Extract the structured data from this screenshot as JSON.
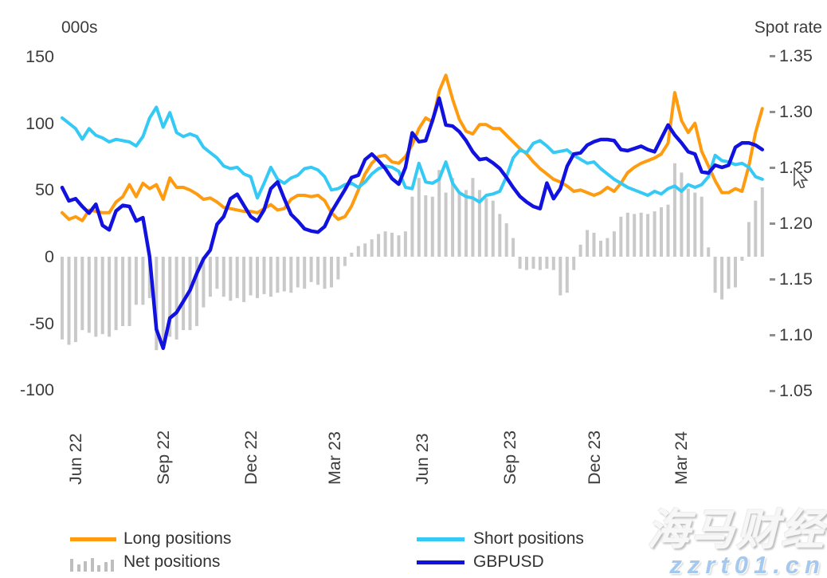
{
  "chart_data": {
    "type": "combo",
    "description": "GBP futures positioning (weekly) vs GBPUSD spot rate",
    "left_axis": {
      "label": "000s",
      "range": [
        -100,
        150
      ],
      "ticks": [
        {
          "label": "150",
          "value": 150
        },
        {
          "label": "100",
          "value": 100
        },
        {
          "label": "50",
          "value": 50
        },
        {
          "label": "0",
          "value": 0
        },
        {
          "label": "-50",
          "value": -50
        },
        {
          "label": "-100",
          "value": -100
        }
      ]
    },
    "right_axis": {
      "label": "Spot rate",
      "range": [
        1.05,
        1.35
      ],
      "ticks": [
        {
          "label": "1.35",
          "value": 1.35
        },
        {
          "label": "1.30",
          "value": 1.3
        },
        {
          "label": "1.25",
          "value": 1.25
        },
        {
          "label": "1.20",
          "value": 1.2
        },
        {
          "label": "1.15",
          "value": 1.15
        },
        {
          "label": "1.10",
          "value": 1.1
        },
        {
          "label": "1.05",
          "value": 1.05
        }
      ]
    },
    "x_axis": {
      "unit": "weeks",
      "tick_labels": [
        {
          "label": "Jun 22",
          "index": 2
        },
        {
          "label": "Sep 22",
          "index": 15
        },
        {
          "label": "Dec 22",
          "index": 28
        },
        {
          "label": "Mar 23",
          "index": 40.5
        },
        {
          "label": "Jun 23",
          "index": 53.5
        },
        {
          "label": "Sep 23",
          "index": 66.5
        },
        {
          "label": "Dec 23",
          "index": 79
        },
        {
          "label": "Mar 24",
          "index": 92
        }
      ]
    },
    "grid": false,
    "legend_position": "bottom",
    "series": [
      {
        "name": "Long positions",
        "type": "line",
        "axis": "left",
        "color": "#FF9B0F",
        "values": [
          33,
          28,
          30,
          27,
          35,
          34,
          33,
          33,
          41,
          45,
          54,
          45,
          55,
          51,
          54,
          43,
          59,
          52,
          52,
          50,
          47,
          43,
          44,
          41,
          37,
          36,
          35,
          34,
          34,
          33,
          36,
          39,
          35,
          36,
          43,
          46,
          46,
          45,
          46,
          42,
          33,
          28,
          30,
          38,
          50,
          62,
          70,
          75,
          76,
          71,
          70,
          75,
          84,
          96,
          104,
          101,
          124,
          136,
          118,
          103,
          94,
          92,
          99,
          99,
          96,
          96,
          91,
          86,
          81,
          77,
          71,
          66,
          62,
          58,
          56,
          53,
          49,
          50,
          48,
          46,
          48,
          52,
          49,
          55,
          63,
          67,
          70,
          72,
          74,
          77,
          85,
          123,
          102,
          93,
          100,
          79,
          68,
          57,
          48,
          48,
          51,
          49,
          68,
          93,
          111
        ]
      },
      {
        "name": "Short positions",
        "type": "line",
        "axis": "left",
        "color": "#35C9F5",
        "values": [
          104,
          100,
          96,
          88,
          96,
          91,
          89,
          86,
          88,
          87,
          86,
          83,
          90,
          104,
          112,
          97,
          108,
          93,
          90,
          92,
          90,
          82,
          78,
          74,
          68,
          66,
          67,
          62,
          60,
          44,
          55,
          67,
          58,
          55,
          59,
          61,
          66,
          67,
          65,
          60,
          50,
          51,
          54,
          55,
          52,
          56,
          62,
          66,
          68,
          67,
          64,
          52,
          51,
          70,
          56,
          55,
          58,
          71,
          55,
          48,
          45,
          44,
          41,
          46,
          47,
          49,
          60,
          74,
          80,
          78,
          85,
          87,
          83,
          78,
          79,
          80,
          76,
          73,
          70,
          71,
          66,
          62,
          58,
          55,
          52,
          50,
          48,
          46,
          49,
          47,
          51,
          53,
          49,
          54,
          52,
          54,
          60,
          76,
          72,
          71,
          69,
          70,
          67,
          60,
          58
        ]
      },
      {
        "name": "Net positions",
        "type": "bar",
        "axis": "left",
        "color": "#c9c9c9",
        "values": [
          -62,
          -66,
          -64,
          -55,
          -57,
          -60,
          -58,
          -60,
          -55,
          -52,
          -52,
          -36,
          -36,
          -31,
          -70,
          -66,
          -60,
          -62,
          -55,
          -55,
          -52,
          -38,
          -30,
          -24,
          -30,
          -33,
          -31,
          -34,
          -29,
          -31,
          -28,
          -30,
          -27,
          -26,
          -27,
          -23,
          -24,
          -19,
          -21,
          -24,
          -23,
          -17,
          -7,
          3,
          8,
          10,
          13,
          17,
          19,
          18,
          16,
          19,
          45,
          59,
          46,
          45,
          65,
          48,
          59,
          48,
          50,
          59,
          50,
          44,
          42,
          32,
          25,
          14,
          -9,
          -10,
          -9,
          -10,
          -9,
          -10,
          -29,
          -27,
          -10,
          9,
          20,
          18,
          12,
          14,
          19,
          30,
          33,
          32,
          33,
          32,
          34,
          37,
          39,
          70,
          63,
          51,
          48,
          45,
          7,
          -27,
          -32,
          -24,
          -23,
          -3,
          26,
          42,
          52
        ]
      },
      {
        "name": "GBPUSD",
        "type": "line",
        "axis": "right",
        "color": "#1212E0",
        "values": [
          1.232,
          1.22,
          1.222,
          1.215,
          1.209,
          1.217,
          1.198,
          1.194,
          1.211,
          1.216,
          1.215,
          1.202,
          1.205,
          1.17,
          1.105,
          1.088,
          1.115,
          1.12,
          1.13,
          1.14,
          1.155,
          1.168,
          1.176,
          1.199,
          1.206,
          1.222,
          1.226,
          1.216,
          1.206,
          1.202,
          1.212,
          1.231,
          1.237,
          1.222,
          1.208,
          1.202,
          1.195,
          1.193,
          1.192,
          1.197,
          1.21,
          1.22,
          1.23,
          1.241,
          1.243,
          1.257,
          1.262,
          1.256,
          1.249,
          1.24,
          1.235,
          1.25,
          1.281,
          1.273,
          1.274,
          1.292,
          1.312,
          1.288,
          1.287,
          1.282,
          1.274,
          1.264,
          1.257,
          1.258,
          1.254,
          1.249,
          1.241,
          1.232,
          1.224,
          1.219,
          1.215,
          1.213,
          1.236,
          1.222,
          1.231,
          1.251,
          1.262,
          1.263,
          1.27,
          1.273,
          1.275,
          1.275,
          1.274,
          1.266,
          1.265,
          1.267,
          1.269,
          1.266,
          1.264,
          1.276,
          1.288,
          1.279,
          1.272,
          1.264,
          1.262,
          1.246,
          1.245,
          1.252,
          1.25,
          1.252,
          1.268,
          1.272,
          1.272,
          1.27,
          1.266
        ]
      }
    ]
  },
  "legend": {
    "long_label": "Long positions",
    "net_label": "Net positions",
    "short_label": "Short positions",
    "gbpusd_label": "GBPUSD"
  },
  "watermark": {
    "line1": "海马财经",
    "line2": "zzrt01.cn"
  }
}
